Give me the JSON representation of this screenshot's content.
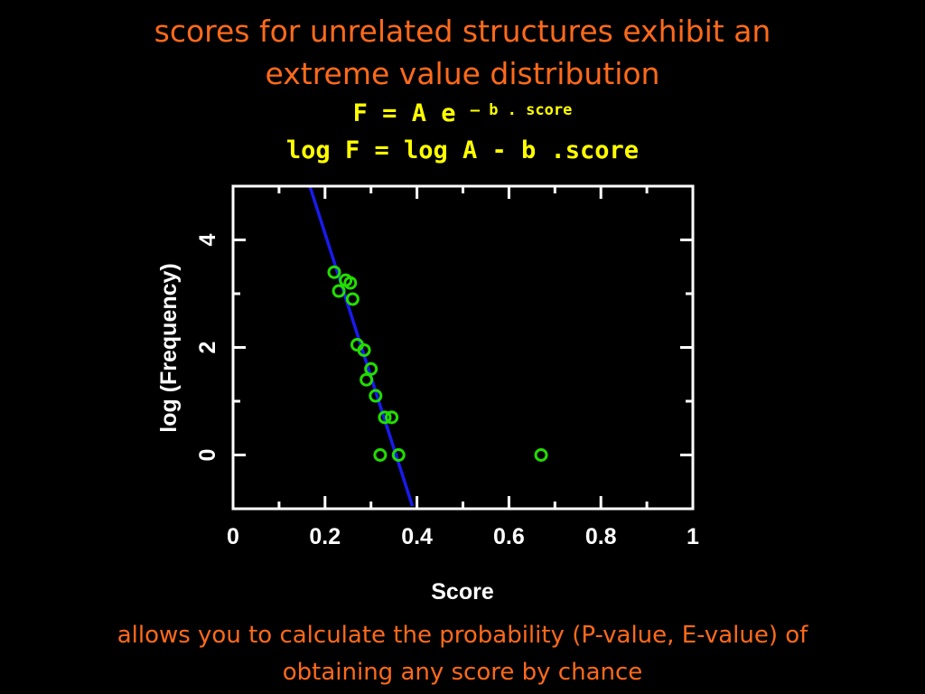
{
  "slide": {
    "title_line1": "scores for unrelated structures exhibit an",
    "title_line2": "extreme value distribution",
    "formula1_main": "F = A e ",
    "formula1_sup": "– b . score",
    "formula2": "log F = log A - b .score",
    "footer_line1": "allows you to calculate the probability (P-value, E-value) of",
    "footer_line2": "obtaining any score by chance"
  },
  "colors": {
    "background": "#000000",
    "title": "#ff6a1a",
    "formula": "#ffff00",
    "axes": "#ffffff",
    "points": "#22dd00",
    "fit_line": "#1a1aee"
  },
  "chart_data": {
    "type": "scatter",
    "xlabel": "Score",
    "ylabel": "log (Frequency)",
    "xlim": [
      0,
      1
    ],
    "ylim": [
      -1,
      5
    ],
    "x_ticks": [
      {
        "value": 0,
        "label": "0"
      },
      {
        "value": 0.2,
        "label": "0.2"
      },
      {
        "value": 0.4,
        "label": "0.4"
      },
      {
        "value": 0.6,
        "label": "0.6"
      },
      {
        "value": 0.8,
        "label": "0.8"
      },
      {
        "value": 1,
        "label": "1"
      }
    ],
    "y_ticks": [
      {
        "value": 0,
        "label": "0"
      },
      {
        "value": 2,
        "label": "2"
      },
      {
        "value": 4,
        "label": "4"
      }
    ],
    "points": [
      {
        "x": 0.22,
        "y": 3.4
      },
      {
        "x": 0.23,
        "y": 3.05
      },
      {
        "x": 0.245,
        "y": 3.25
      },
      {
        "x": 0.255,
        "y": 3.2
      },
      {
        "x": 0.26,
        "y": 2.9
      },
      {
        "x": 0.27,
        "y": 2.05
      },
      {
        "x": 0.285,
        "y": 1.95
      },
      {
        "x": 0.3,
        "y": 1.6
      },
      {
        "x": 0.29,
        "y": 1.4
      },
      {
        "x": 0.31,
        "y": 1.1
      },
      {
        "x": 0.33,
        "y": 0.7
      },
      {
        "x": 0.345,
        "y": 0.7
      },
      {
        "x": 0.32,
        "y": 0.0
      },
      {
        "x": 0.36,
        "y": 0.0
      },
      {
        "x": 0.67,
        "y": 0.0
      }
    ],
    "fit_line": {
      "x1": 0.167,
      "y1": 5.0,
      "x2": 0.39,
      "y2": -0.95
    },
    "grid": false
  }
}
